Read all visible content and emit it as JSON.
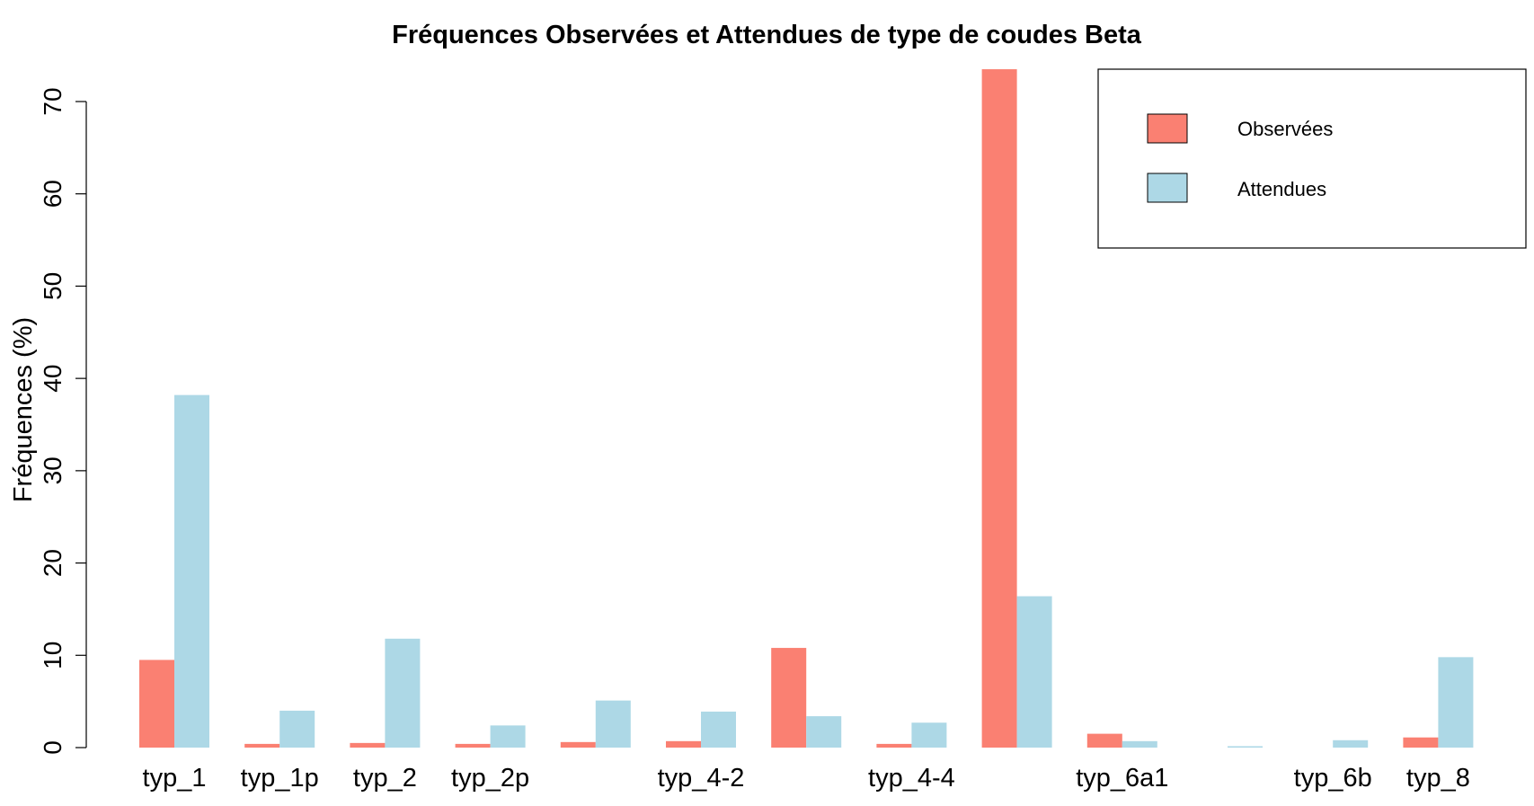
{
  "chart_data": {
    "type": "bar",
    "title": "Fréquences Observées et Attendues de type de coudes Beta",
    "xlabel": "",
    "ylabel": "Fréquences (%)",
    "ylim": [
      0,
      73.5
    ],
    "yticks": [
      0,
      10,
      20,
      30,
      40,
      50,
      60,
      70
    ],
    "categories": [
      "typ_1",
      "typ_1p",
      "typ_2",
      "typ_2p",
      "",
      "typ_4-2",
      "",
      "typ_4-4",
      "",
      "typ_6a1",
      "",
      "typ_6b",
      "typ_8"
    ],
    "series": [
      {
        "name": "Observées",
        "color": "#FA8072",
        "values": [
          9.5,
          0.4,
          0.5,
          0.4,
          0.6,
          0.7,
          10.8,
          0.4,
          73.5,
          1.5,
          0.0,
          0.0,
          1.1
        ]
      },
      {
        "name": "Attendues",
        "color": "#ADD8E6",
        "values": [
          38.2,
          4.0,
          11.8,
          2.4,
          5.1,
          3.9,
          3.4,
          2.7,
          16.4,
          0.7,
          0.15,
          0.8,
          9.8
        ]
      }
    ],
    "grid": false,
    "legend_position": "top-right"
  }
}
